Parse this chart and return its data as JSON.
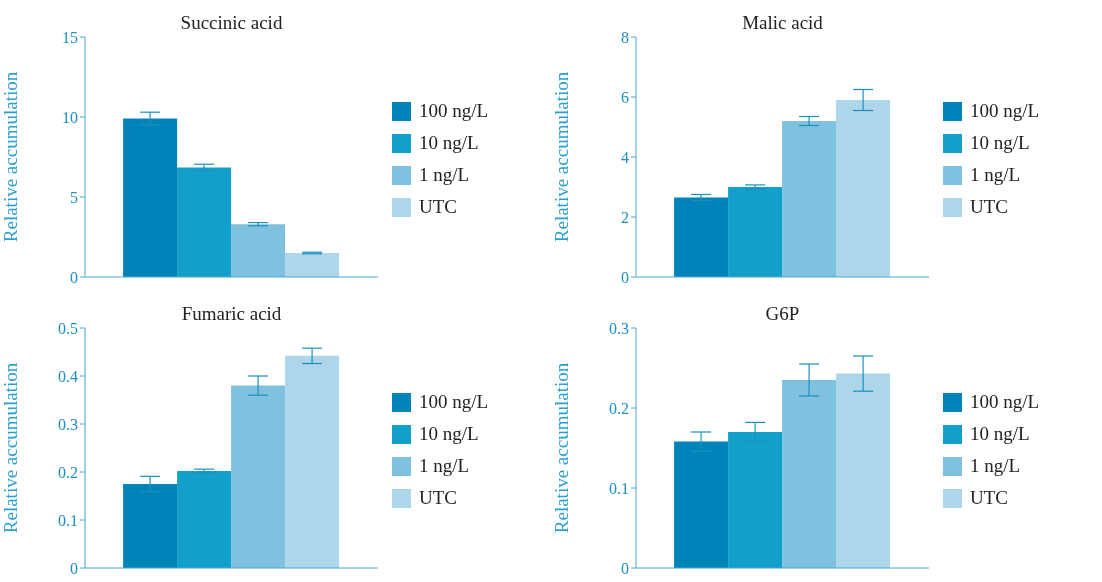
{
  "chart_data": [
    {
      "type": "bar",
      "title": "Succinic acid",
      "ylabel": "Relative accumulation",
      "categories": [
        null
      ],
      "ylim": [
        0,
        15
      ],
      "yticks": [
        0,
        5,
        10,
        15
      ],
      "tick_labels": "y",
      "legend": "right",
      "series": [
        {
          "name": "100 ng/L",
          "color": "#0083b8",
          "values": [
            9.9
          ],
          "errors": [
            0.4
          ]
        },
        {
          "name": "10 ng/L",
          "color": "#12a0ca",
          "values": [
            6.85
          ],
          "errors": [
            0.2
          ]
        },
        {
          "name": "1 ng/L",
          "color": "#7fc1de",
          "values": [
            3.3
          ],
          "errors": [
            0.1
          ]
        },
        {
          "name": "UTC",
          "color": "#add6ea",
          "values": [
            1.5
          ],
          "errors": [
            0.05
          ]
        }
      ]
    },
    {
      "type": "bar",
      "title": "Malic acid",
      "ylabel": "Relative accumulation",
      "categories": [
        null
      ],
      "ylim": [
        0,
        8
      ],
      "yticks": [
        0,
        2,
        4,
        6,
        8
      ],
      "tick_labels": "y",
      "legend": "right",
      "series": [
        {
          "name": "100 ng/L",
          "color": "#0083b8",
          "values": [
            2.65
          ],
          "errors": [
            0.1
          ]
        },
        {
          "name": "10 ng/L",
          "color": "#12a0ca",
          "values": [
            3.0
          ],
          "errors": [
            0.07
          ]
        },
        {
          "name": "1 ng/L",
          "color": "#7fc1de",
          "values": [
            5.2
          ],
          "errors": [
            0.15
          ]
        },
        {
          "name": "UTC",
          "color": "#add6ea",
          "values": [
            5.9
          ],
          "errors": [
            0.35
          ]
        }
      ]
    },
    {
      "type": "bar",
      "title": "Fumaric acid",
      "ylabel": "Relative accumulation",
      "categories": [
        null
      ],
      "ylim": [
        0,
        0.5
      ],
      "yticks": [
        0,
        0.1,
        0.2,
        0.3,
        0.4,
        0.5
      ],
      "tick_labels": "y",
      "legend": "right",
      "series": [
        {
          "name": "100 ng/L",
          "color": "#0083b8",
          "values": [
            0.175
          ],
          "errors": [
            0.016
          ]
        },
        {
          "name": "10 ng/L",
          "color": "#12a0ca",
          "values": [
            0.202
          ],
          "errors": [
            0.004
          ]
        },
        {
          "name": "1 ng/L",
          "color": "#7fc1de",
          "values": [
            0.38
          ],
          "errors": [
            0.02
          ]
        },
        {
          "name": "UTC",
          "color": "#add6ea",
          "values": [
            0.442
          ],
          "errors": [
            0.016
          ]
        }
      ]
    },
    {
      "type": "bar",
      "title": "G6P",
      "ylabel": "Relative accumulation",
      "categories": [
        null
      ],
      "ylim": [
        0,
        0.3
      ],
      "yticks": [
        0,
        0.1,
        0.2,
        0.3
      ],
      "tick_labels": "y",
      "legend": "right",
      "series": [
        {
          "name": "100 ng/L",
          "color": "#0083b8",
          "values": [
            0.158
          ],
          "errors": [
            0.012
          ]
        },
        {
          "name": "10 ng/L",
          "color": "#12a0ca",
          "values": [
            0.17
          ],
          "errors": [
            0.012
          ]
        },
        {
          "name": "1 ng/L",
          "color": "#7fc1de",
          "values": [
            0.235
          ],
          "errors": [
            0.02
          ]
        },
        {
          "name": "UTC",
          "color": "#add6ea",
          "values": [
            0.243
          ],
          "errors": [
            0.022
          ]
        }
      ]
    }
  ]
}
